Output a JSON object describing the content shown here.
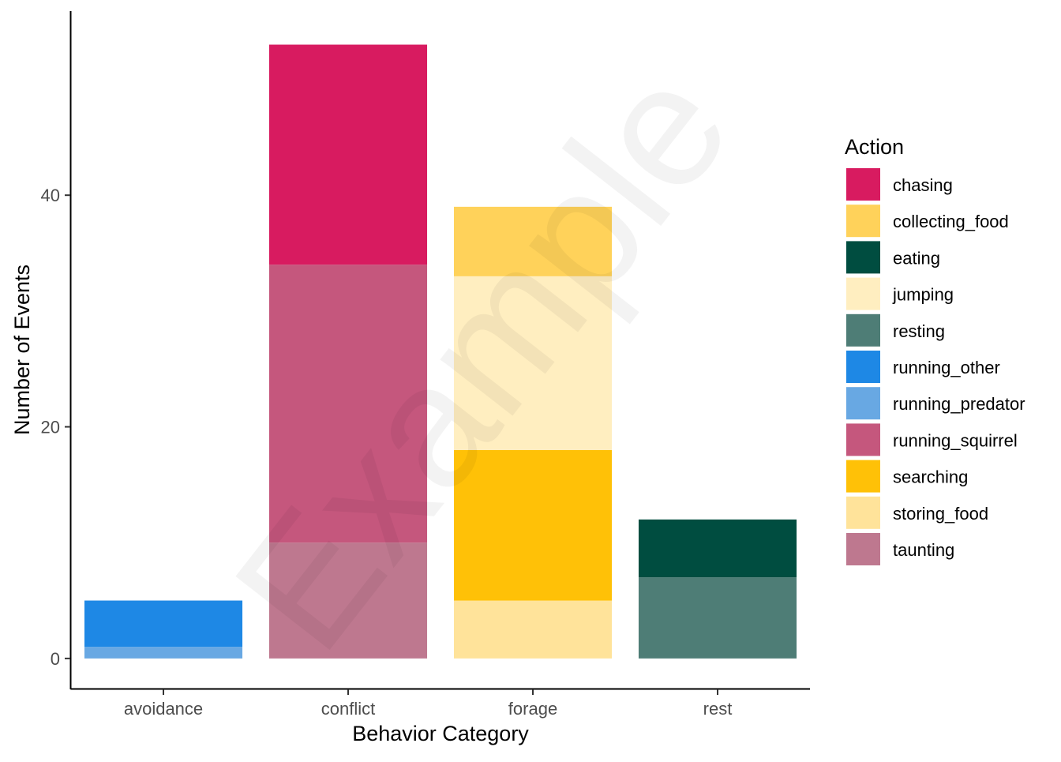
{
  "chart_data": {
    "type": "bar",
    "stacked": true,
    "xlabel": "Behavior Category",
    "ylabel": "Number of Events",
    "categories": [
      "avoidance",
      "conflict",
      "forage",
      "rest"
    ],
    "ylim": [
      -2.6,
      55.9
    ],
    "yticks": [
      0,
      20,
      40
    ],
    "grid": false,
    "legend": {
      "title": "Action",
      "position": "right",
      "entries": [
        {
          "name": "chasing",
          "color": "#D81B60"
        },
        {
          "name": "collecting_food",
          "color": "#FFD25A"
        },
        {
          "name": "eating",
          "color": "#004D40"
        },
        {
          "name": "jumping",
          "color": "#FFEEC0"
        },
        {
          "name": "resting",
          "color": "#4E7D76"
        },
        {
          "name": "running_other",
          "color": "#1E88E5"
        },
        {
          "name": "running_predator",
          "color": "#68A8E3"
        },
        {
          "name": "running_squirrel",
          "color": "#C5577D"
        },
        {
          "name": "searching",
          "color": "#FFC107"
        },
        {
          "name": "storing_food",
          "color": "#FFE39A"
        },
        {
          "name": "taunting",
          "color": "#BE788F"
        }
      ]
    },
    "stacks": [
      {
        "category": "avoidance",
        "segments": [
          {
            "action": "running_predator",
            "value": 1
          },
          {
            "action": "running_other",
            "value": 4
          }
        ]
      },
      {
        "category": "conflict",
        "segments": [
          {
            "action": "taunting",
            "value": 10
          },
          {
            "action": "running_squirrel",
            "value": 24
          },
          {
            "action": "chasing",
            "value": 19
          }
        ]
      },
      {
        "category": "forage",
        "segments": [
          {
            "action": "storing_food",
            "value": 5
          },
          {
            "action": "searching",
            "value": 13
          },
          {
            "action": "jumping",
            "value": 15
          },
          {
            "action": "collecting_food",
            "value": 6
          }
        ]
      },
      {
        "category": "rest",
        "segments": [
          {
            "action": "resting",
            "value": 7
          },
          {
            "action": "eating",
            "value": 5
          }
        ]
      }
    ]
  },
  "watermark": {
    "text": "Example"
  }
}
